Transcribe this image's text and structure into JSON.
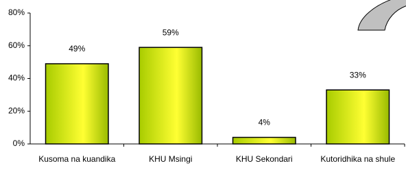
{
  "chart_data": {
    "type": "bar",
    "categories": [
      "Kusoma na kuandika",
      "KHU Msingi",
      "KHU Sekondari",
      "Kutoridhika na shule"
    ],
    "values": [
      49,
      59,
      4,
      33
    ],
    "value_labels": [
      "49%",
      "59%",
      "4%",
      "33%"
    ],
    "ylim": [
      0,
      80
    ],
    "yticks": [
      {
        "value": 0,
        "label": "0%"
      },
      {
        "value": 20,
        "label": "20%"
      },
      {
        "value": 40,
        "label": "40%"
      },
      {
        "value": 60,
        "label": "60%"
      },
      {
        "value": 80,
        "label": "80%"
      }
    ],
    "grid": false
  }
}
